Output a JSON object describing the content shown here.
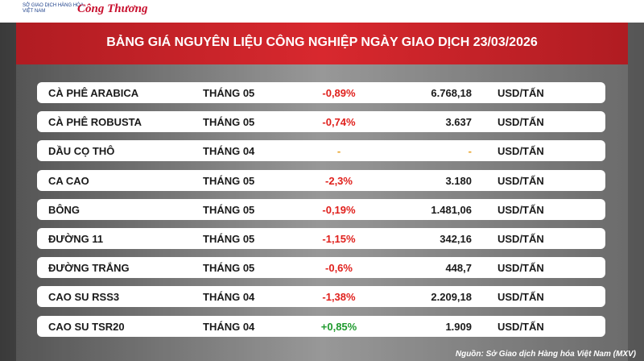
{
  "header": {
    "logo_text": "SỞ GIAO DỊCH HÀNG HÓA VIỆT NAM",
    "brand": "Công Thương",
    "title": "BẢNG GIÁ NGUYÊN LIỆU CÔNG NGHIỆP NGÀY GIAO DỊCH 23/03/2026"
  },
  "table": {
    "rows": [
      [
        "CÀ PHÊ ARABICA",
        "THÁNG 05",
        "-0,89%",
        "6.768,18",
        "USD/TẤN"
      ],
      [
        "CÀ PHÊ ROBUSTA",
        "THÁNG 05",
        "-0,74%",
        "3.637",
        "USD/TẤN"
      ],
      [
        "DẦU CỌ THÔ",
        "THÁNG 04",
        "-",
        "-",
        "USD/TẤN"
      ],
      [
        "CA CAO",
        "THÁNG 05",
        "-2,3%",
        "3.180",
        "USD/TẤN"
      ],
      [
        "BÔNG",
        "THÁNG 05",
        "-0,19%",
        "1.481,06",
        "USD/TẤN"
      ],
      [
        "ĐƯỜNG 11",
        "THÁNG 05",
        "-1,15%",
        "342,16",
        "USD/TẤN"
      ],
      [
        "ĐƯỜNG TRẮNG",
        "THÁNG 05",
        "-0,6%",
        "448,7",
        "USD/TẤN"
      ],
      [
        "CAO SU RSS3",
        "THÁNG 04",
        "-1,38%",
        "2.209,18",
        "USD/TẤN"
      ],
      [
        "CAO SU TSR20",
        "THÁNG 04",
        "+0,85%",
        "1.909",
        "USD/TẤN"
      ]
    ]
  },
  "footer": {
    "source": "Nguồn: Sở Giao dịch Hàng hóa Việt Nam (MXV)"
  }
}
